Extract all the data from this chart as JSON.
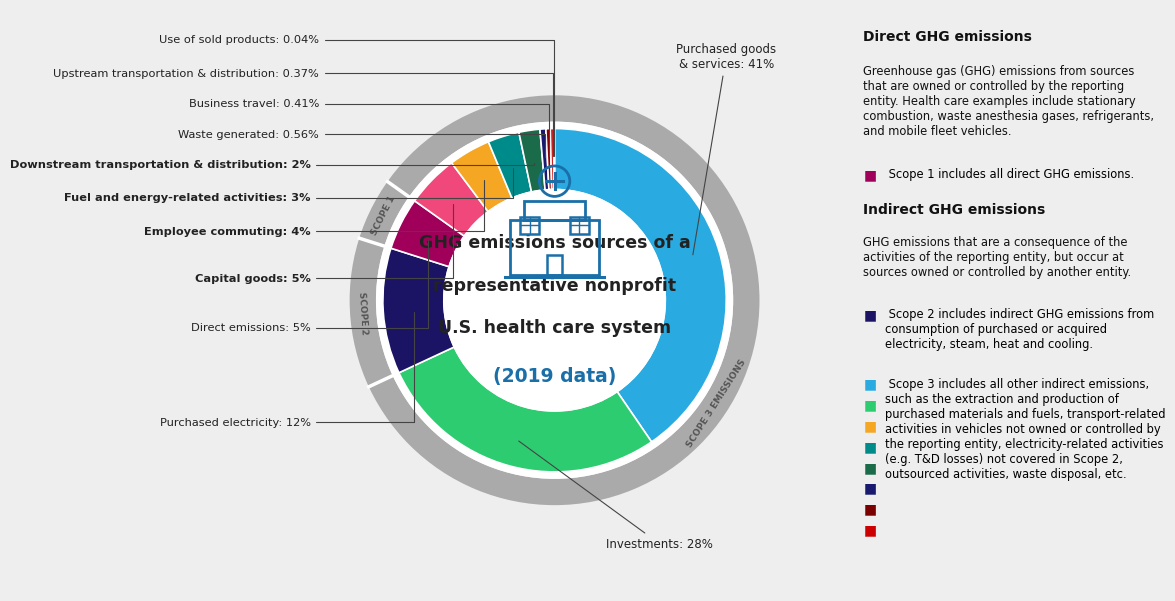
{
  "bg_color": "#eeeeee",
  "segments": [
    {
      "label": "Purchased goods\n& services: 41%",
      "value": 41,
      "color": "#29ABE2",
      "scope": 3
    },
    {
      "label": "Investments: 28%",
      "value": 28,
      "color": "#2ECC71",
      "scope": 3
    },
    {
      "label": "Purchased electricity: 12%",
      "value": 12,
      "color": "#1B1464",
      "scope": 2
    },
    {
      "label": "Direct emissions: 5%",
      "value": 5,
      "color": "#A0005A",
      "scope": 1
    },
    {
      "label": "Capital goods: 5%",
      "value": 5,
      "color": "#F0487A",
      "scope": 3
    },
    {
      "label": "Employee commuting: 4%",
      "value": 4,
      "color": "#F5A623",
      "scope": 3
    },
    {
      "label": "Fuel and energy-related activities: 3%",
      "value": 3,
      "color": "#008B8B",
      "scope": 3
    },
    {
      "label": "Downstream transportation & distribution: 2%",
      "value": 2,
      "color": "#1A6B4A",
      "scope": 3
    },
    {
      "label": "Waste generated: 0.56%",
      "value": 0.56,
      "color": "#191970",
      "scope": 3
    },
    {
      "label": "Business travel: 0.41%",
      "value": 0.41,
      "color": "#8B0000",
      "scope": 3
    },
    {
      "label": "Upstream transportation & distribution: 0.37%",
      "value": 0.37,
      "color": "#CC2222",
      "scope": 3
    },
    {
      "label": "Use of sold products: 0.04%",
      "value": 0.04,
      "color": "#2D6A2D",
      "scope": 3
    }
  ],
  "title_lines": [
    "GHG emissions sources of a",
    "representative nonprofit",
    "U.S. health care system"
  ],
  "title_color": "#222222",
  "subtitle": "(2019 data)",
  "subtitle_color": "#1a6fa8",
  "icon_color": "#1a6fa8",
  "scope1_color": "#A0005A",
  "scope2_color": "#1B1464",
  "scope3_color": "#29ABE2",
  "outer_ring_color": "#aaaaaa",
  "white": "#ffffff",
  "annotation_color": "#222222",
  "right_panel": {
    "title1": "Direct GHG emissions",
    "body1": "Greenhouse gas (GHG) emissions from sources\nthat are owned or controlled by the reporting\nentity. Health care examples include stationary\ncombustion, waste anesthesia gases, refrigerants,\nand mobile fleet vehicles.",
    "scope1_bullet_color": "#A0005A",
    "scope1_text": " Scope 1 includes all direct GHG emissions.",
    "title2": "Indirect GHG emissions",
    "body2": "GHG emissions that are a consequence of the\nactivities of the reporting entity, but occur at\nsources owned or controlled by another entity.",
    "scope2_bullet_color": "#1B1464",
    "scope2_text": " Scope 2 includes indirect GHG emissions from\nconsumption of purchased or acquired\nelectricity, steam, heat and cooling.",
    "scope3_colors": [
      "#29ABE2",
      "#2ECC71",
      "#F5A623",
      "#008B8B",
      "#1A6B4A",
      "#191970",
      "#7B0000",
      "#CC0000"
    ],
    "scope3_text": " Scope 3 includes all other indirect emissions,\nsuch as the extraction and production of\npurchased materials and fuels, transport-related\nactivities in vehicles not owned or controlled by\nthe reporting entity, electricity-related activities\n(e.g. T&D losses) not covered in Scope 2,\noutsourced activities, waste disposal, etc."
  }
}
